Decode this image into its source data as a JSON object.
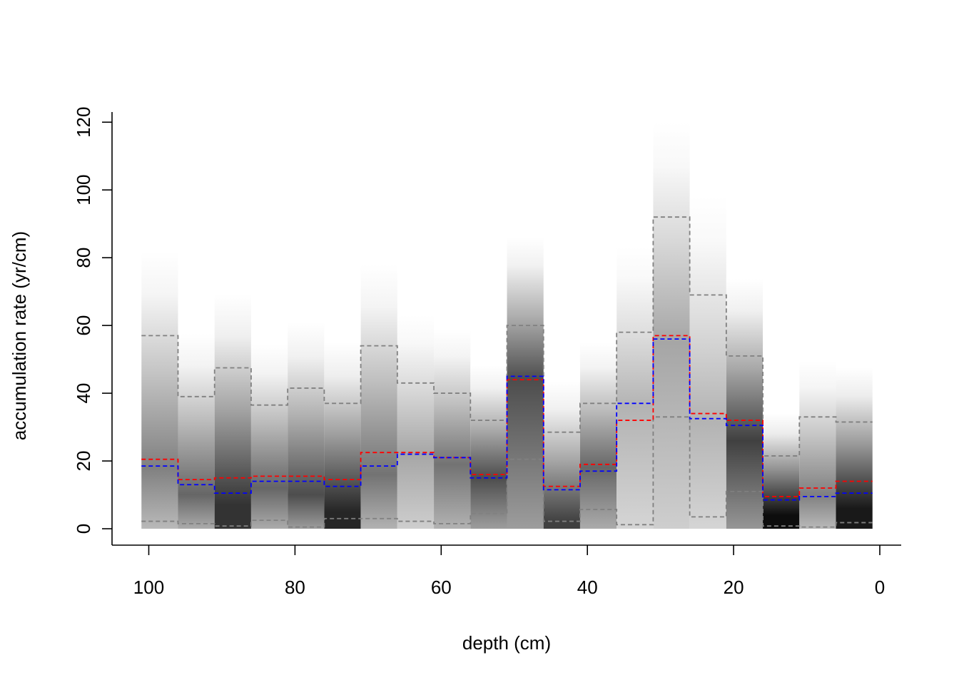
{
  "chart_data": {
    "type": "area",
    "title": "",
    "xlabel": "depth (cm)",
    "ylabel": "accumulation rate (yr/cm)",
    "xlim": [
      100,
      0
    ],
    "ylim": [
      0,
      120
    ],
    "x_reversed": true,
    "x_ticks": [
      100,
      80,
      60,
      40,
      20,
      0
    ],
    "x_tick_labels": [
      "100",
      "80",
      "60",
      "40",
      "20",
      "0"
    ],
    "y_ticks": [
      0,
      20,
      40,
      60,
      80,
      100,
      120
    ],
    "y_tick_labels": [
      "0",
      "20",
      "40",
      "60",
      "80",
      "100",
      "120"
    ],
    "grid": false,
    "bin_edges": [
      101,
      96,
      91,
      86,
      81,
      76,
      71,
      66,
      61,
      56,
      51,
      46,
      41,
      36,
      31,
      26,
      21,
      16,
      11,
      6,
      1
    ],
    "density_peak": [
      18,
      10,
      7,
      12,
      10,
      5,
      16,
      22,
      19,
      15,
      44,
      2,
      18,
      36,
      55,
      32,
      26,
      4,
      10,
      6
    ],
    "density_darkness": [
      0.5,
      0.6,
      0.8,
      0.6,
      0.7,
      0.85,
      0.55,
      0.35,
      0.55,
      0.7,
      0.7,
      0.75,
      0.6,
      0.3,
      0.35,
      0.3,
      0.75,
      0.95,
      0.5,
      0.9
    ],
    "series": [
      {
        "name": "",
        "role": "upper interval",
        "color": "#808080",
        "values": [
          57,
          39,
          47.5,
          36.5,
          41.5,
          37,
          54,
          43,
          40,
          32,
          60,
          28.5,
          37,
          58,
          92,
          69,
          51,
          21.5,
          33,
          31.5
        ]
      },
      {
        "name": "",
        "role": "lower interval",
        "color": "#808080",
        "values": [
          2.2,
          1.5,
          0.8,
          2.5,
          0.5,
          3,
          3,
          2.2,
          1.5,
          4.5,
          20.5,
          2.2,
          5.7,
          1.2,
          33,
          3.5,
          11,
          0.8,
          0.5,
          1.8
        ]
      },
      {
        "name": "",
        "role": "mean",
        "color": "#ff0000",
        "values": [
          20.5,
          14.5,
          15,
          15.5,
          15.5,
          14.5,
          22.5,
          22.5,
          21,
          16,
          44,
          12.5,
          19,
          32,
          57,
          34,
          32,
          9.5,
          12,
          14
        ]
      },
      {
        "name": "",
        "role": "median",
        "color": "#0000ff",
        "values": [
          18.5,
          13,
          10.5,
          14,
          14,
          12.5,
          18.5,
          22,
          21,
          15,
          45,
          11.5,
          17,
          37,
          56,
          32.5,
          30.5,
          8.5,
          9.5,
          10.5
        ]
      }
    ]
  }
}
